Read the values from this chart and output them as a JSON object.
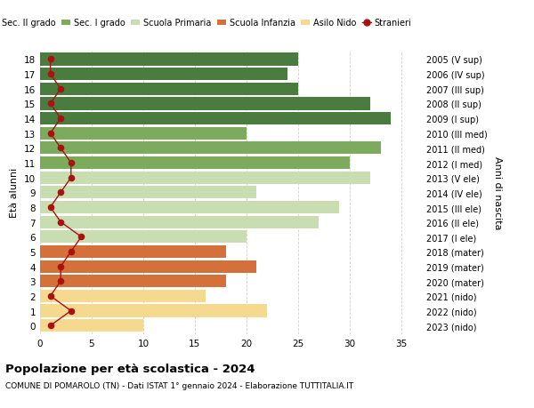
{
  "ages": [
    18,
    17,
    16,
    15,
    14,
    13,
    12,
    11,
    10,
    9,
    8,
    7,
    6,
    5,
    4,
    3,
    2,
    1,
    0
  ],
  "years": [
    "2005 (V sup)",
    "2006 (IV sup)",
    "2007 (III sup)",
    "2008 (II sup)",
    "2009 (I sup)",
    "2010 (III med)",
    "2011 (II med)",
    "2012 (I med)",
    "2013 (V ele)",
    "2014 (IV ele)",
    "2015 (III ele)",
    "2016 (II ele)",
    "2017 (I ele)",
    "2018 (mater)",
    "2019 (mater)",
    "2020 (mater)",
    "2021 (nido)",
    "2022 (nido)",
    "2023 (nido)"
  ],
  "bar_values": [
    25,
    24,
    25,
    32,
    34,
    20,
    33,
    30,
    32,
    21,
    29,
    27,
    20,
    18,
    21,
    18,
    16,
    22,
    10
  ],
  "bar_colors": [
    "#4a7c3f",
    "#4a7c3f",
    "#4a7c3f",
    "#4a7c3f",
    "#4a7c3f",
    "#7dab5e",
    "#7dab5e",
    "#7dab5e",
    "#c8ddb0",
    "#c8ddb0",
    "#c8ddb0",
    "#c8ddb0",
    "#c8ddb0",
    "#d4703a",
    "#d4703a",
    "#d4703a",
    "#f5d98e",
    "#f5d98e",
    "#f5d98e"
  ],
  "stranieri_values": [
    1,
    1,
    2,
    1,
    2,
    1,
    2,
    3,
    3,
    2,
    1,
    2,
    4,
    3,
    2,
    2,
    1,
    3,
    1
  ],
  "legend_labels": [
    "Sec. II grado",
    "Sec. I grado",
    "Scuola Primaria",
    "Scuola Infanzia",
    "Asilo Nido",
    "Stranieri"
  ],
  "legend_colors": [
    "#4a7c3f",
    "#7dab5e",
    "#c8ddb0",
    "#d4703a",
    "#f5d98e",
    "#aa1111"
  ],
  "ylabel_left": "Età alunni",
  "ylabel_right": "Anni di nascita",
  "title": "Popolazione per età scolastica - 2024",
  "subtitle": "COMUNE DI POMAROLO (TN) - Dati ISTAT 1° gennaio 2024 - Elaborazione TUTTITALIA.IT",
  "xlim": [
    0,
    37
  ],
  "xticks": [
    0,
    5,
    10,
    15,
    20,
    25,
    30,
    35
  ],
  "background_color": "#ffffff",
  "grid_color": "#d0d0d0"
}
